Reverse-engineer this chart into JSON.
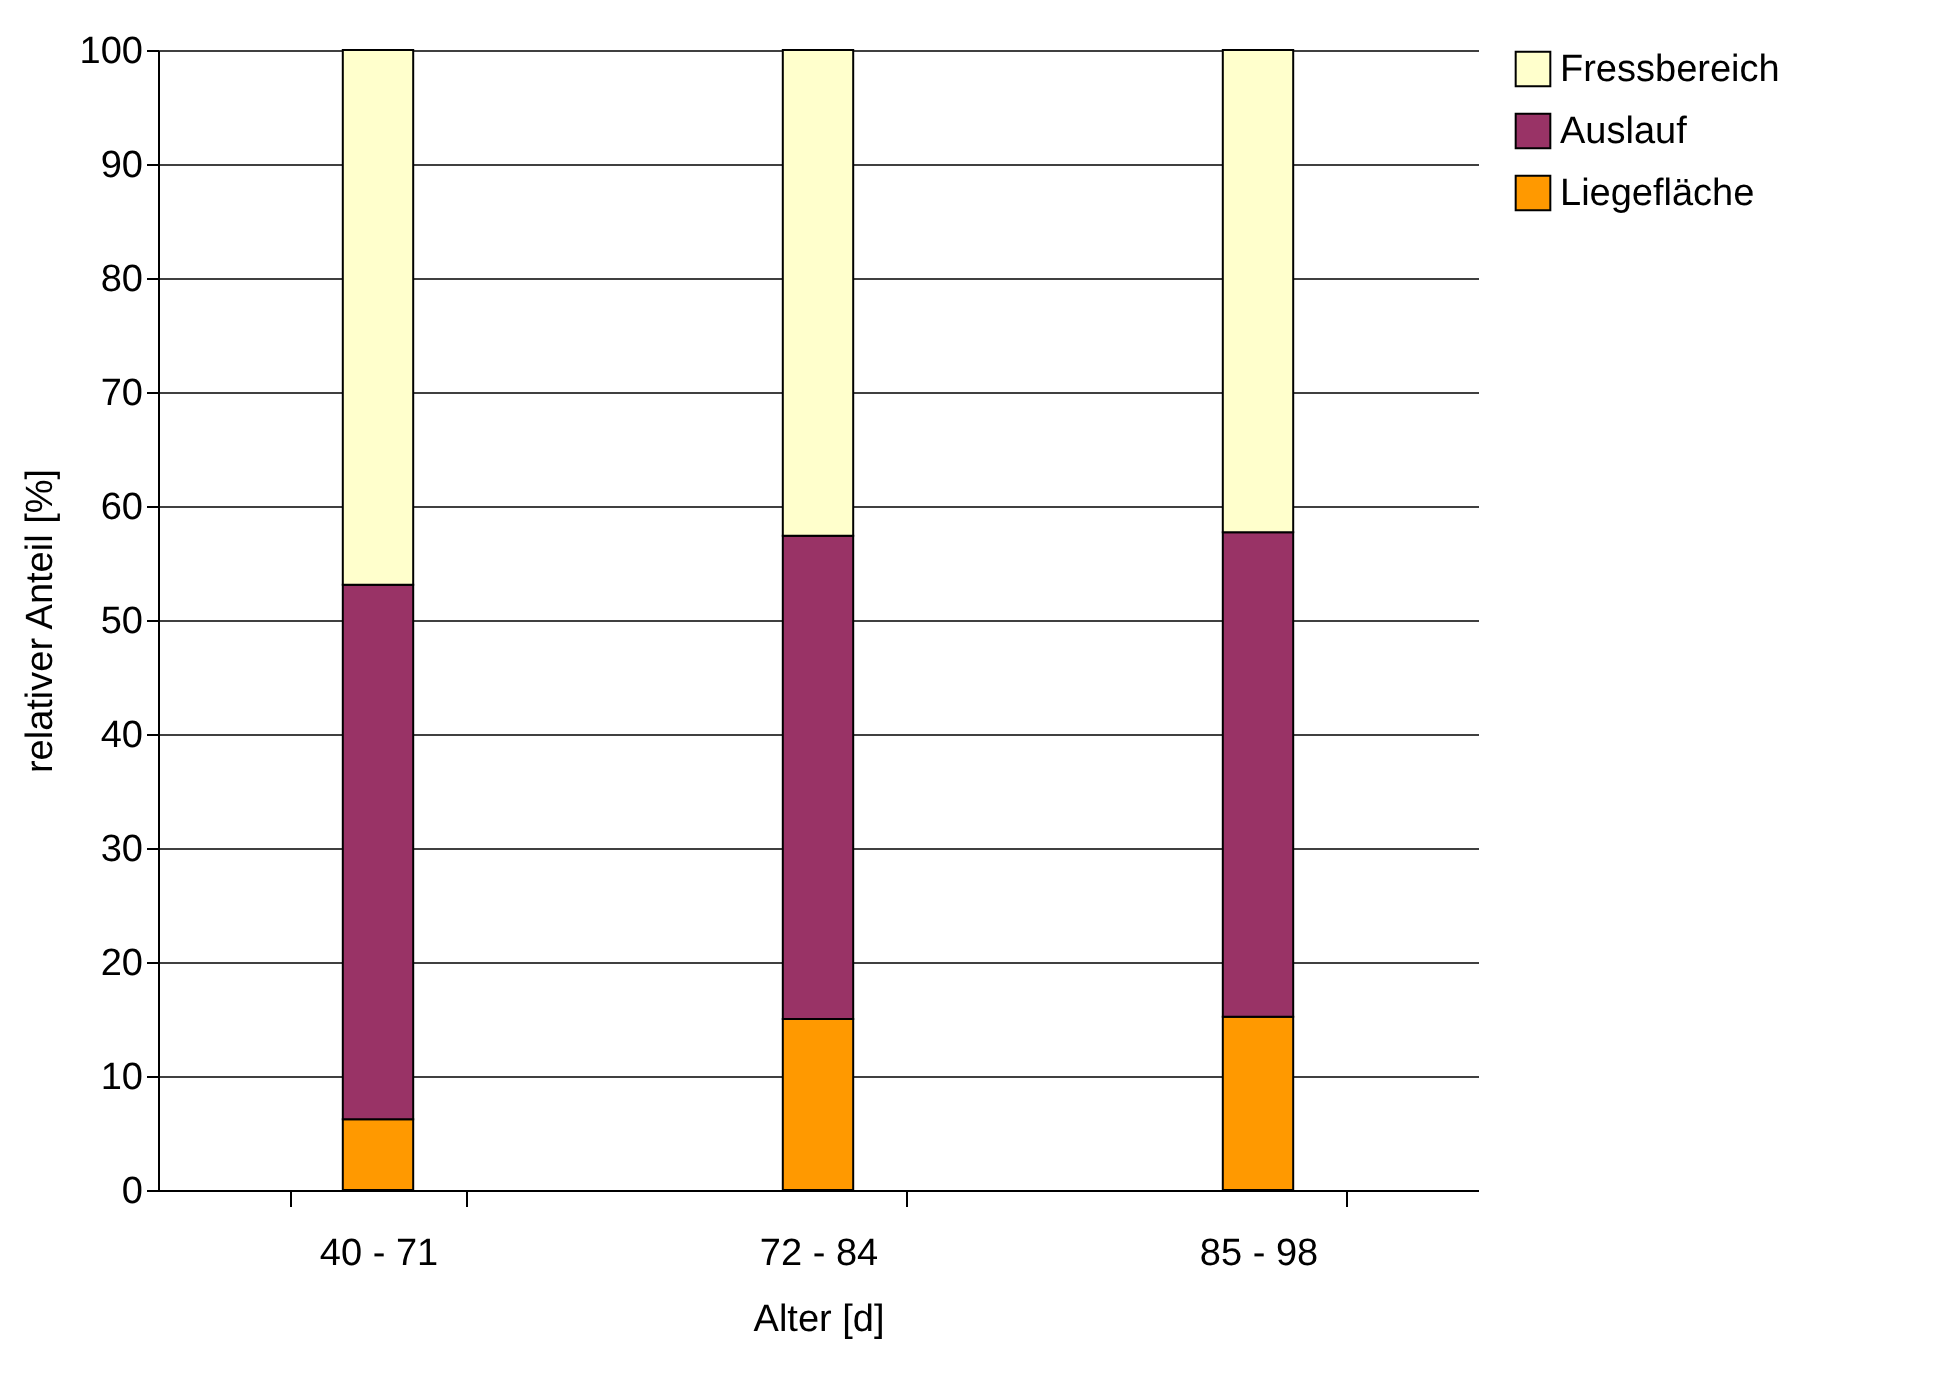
{
  "chart_data": {
    "type": "bar",
    "stacked": true,
    "xlabel": "Alter [d]",
    "ylabel": "relativer Anteil [%]",
    "categories": [
      "40 - 71",
      "72 - 84",
      "85 - 98"
    ],
    "series": [
      {
        "name": "Liegefläche",
        "color": "#ff9900",
        "values": [
          6.2,
          15.0,
          15.2
        ]
      },
      {
        "name": "Auslauf",
        "color": "#993366",
        "values": [
          46.9,
          42.4,
          42.5
        ]
      },
      {
        "name": "Fressbereich",
        "color": "#ffffcc",
        "values": [
          46.9,
          42.6,
          42.3
        ]
      }
    ],
    "ylim": [
      0,
      100
    ],
    "yticks": [
      0,
      10,
      20,
      30,
      40,
      50,
      60,
      70,
      80,
      90,
      100
    ],
    "grid": "y",
    "legend": "right"
  }
}
